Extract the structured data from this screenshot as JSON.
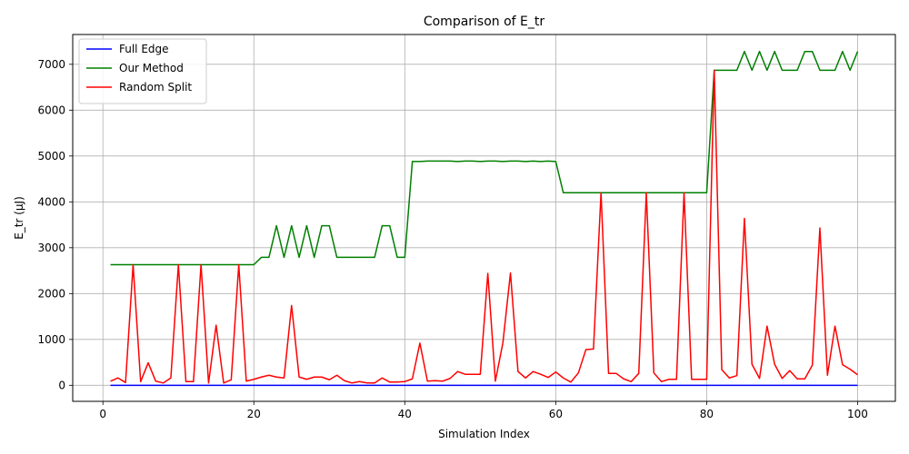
{
  "chart_data": {
    "type": "line",
    "title": "Comparison of E_tr",
    "xlabel": "Simulation Index",
    "ylabel": "E_tr (μJ)",
    "xlim": [
      -4,
      105
    ],
    "ylim": [
      -350,
      7650
    ],
    "xticks": [
      0,
      20,
      40,
      60,
      80,
      100
    ],
    "yticks": [
      0,
      1000,
      2000,
      3000,
      4000,
      5000,
      6000,
      7000
    ],
    "grid": true,
    "legend_position": "top-left",
    "x": [
      1,
      2,
      3,
      4,
      5,
      6,
      7,
      8,
      9,
      10,
      11,
      12,
      13,
      14,
      15,
      16,
      17,
      18,
      19,
      20,
      21,
      22,
      23,
      24,
      25,
      26,
      27,
      28,
      29,
      30,
      31,
      32,
      33,
      34,
      35,
      36,
      37,
      38,
      39,
      40,
      41,
      42,
      43,
      44,
      45,
      46,
      47,
      48,
      49,
      50,
      51,
      52,
      53,
      54,
      55,
      56,
      57,
      58,
      59,
      60,
      61,
      62,
      63,
      64,
      65,
      66,
      67,
      68,
      69,
      70,
      71,
      72,
      73,
      74,
      75,
      76,
      77,
      78,
      79,
      80,
      81,
      82,
      83,
      84,
      85,
      86,
      87,
      88,
      89,
      90,
      91,
      92,
      93,
      94,
      95,
      96,
      97,
      98,
      99,
      100
    ],
    "series": [
      {
        "name": "Full Edge",
        "color": "#0000ff",
        "values": [
          0,
          0,
          0,
          0,
          0,
          0,
          0,
          0,
          0,
          0,
          0,
          0,
          0,
          0,
          0,
          0,
          0,
          0,
          0,
          0,
          0,
          0,
          0,
          0,
          0,
          0,
          0,
          0,
          0,
          0,
          0,
          0,
          0,
          0,
          0,
          0,
          0,
          0,
          0,
          0,
          0,
          0,
          0,
          0,
          0,
          0,
          0,
          0,
          0,
          0,
          0,
          0,
          0,
          0,
          0,
          0,
          0,
          0,
          0,
          0,
          0,
          0,
          0,
          0,
          0,
          0,
          0,
          0,
          0,
          0,
          0,
          0,
          0,
          0,
          0,
          0,
          0,
          0,
          0,
          0,
          0,
          0,
          0,
          0,
          0,
          0,
          0,
          0,
          0,
          0,
          0,
          0,
          0,
          0,
          0,
          0,
          0,
          0,
          0,
          0
        ]
      },
      {
        "name": "Our Method",
        "color": "#008000",
        "values": [
          2630,
          2630,
          2630,
          2630,
          2630,
          2630,
          2630,
          2630,
          2630,
          2630,
          2630,
          2630,
          2630,
          2630,
          2630,
          2630,
          2630,
          2630,
          2630,
          2630,
          2790,
          2790,
          3480,
          2790,
          3480,
          2790,
          3480,
          2790,
          3480,
          3480,
          2790,
          2790,
          2790,
          2790,
          2790,
          2790,
          3480,
          3480,
          2790,
          2790,
          4880,
          4880,
          4890,
          4890,
          4890,
          4890,
          4880,
          4890,
          4890,
          4880,
          4890,
          4890,
          4880,
          4890,
          4890,
          4880,
          4890,
          4880,
          4890,
          4880,
          4200,
          4200,
          4200,
          4200,
          4200,
          4200,
          4200,
          4200,
          4200,
          4200,
          4200,
          4200,
          4200,
          4200,
          4200,
          4200,
          4200,
          4200,
          4200,
          4200,
          6870,
          6870,
          6870,
          6870,
          7280,
          6870,
          7280,
          6870,
          7280,
          6870,
          6870,
          6870,
          7280,
          7280,
          6870,
          6870,
          6870,
          7280,
          6870,
          7280
        ]
      },
      {
        "name": "Random Split",
        "color": "#ff0000",
        "values": [
          90,
          160,
          60,
          2630,
          80,
          490,
          90,
          50,
          160,
          2630,
          80,
          80,
          2630,
          50,
          1310,
          50,
          120,
          2630,
          90,
          130,
          180,
          220,
          180,
          160,
          1740,
          180,
          130,
          180,
          180,
          120,
          220,
          100,
          50,
          80,
          50,
          50,
          160,
          70,
          70,
          80,
          140,
          920,
          90,
          100,
          90,
          150,
          300,
          240,
          240,
          240,
          2440,
          90,
          930,
          2450,
          300,
          160,
          300,
          240,
          170,
          290,
          160,
          70,
          270,
          780,
          790,
          4200,
          260,
          260,
          140,
          80,
          260,
          4200,
          270,
          80,
          130,
          130,
          4200,
          130,
          130,
          130,
          6870,
          340,
          160,
          210,
          3640,
          460,
          150,
          1290,
          460,
          150,
          320,
          140,
          140,
          440,
          3430,
          220,
          1290,
          450,
          350,
          230
        ]
      }
    ]
  }
}
